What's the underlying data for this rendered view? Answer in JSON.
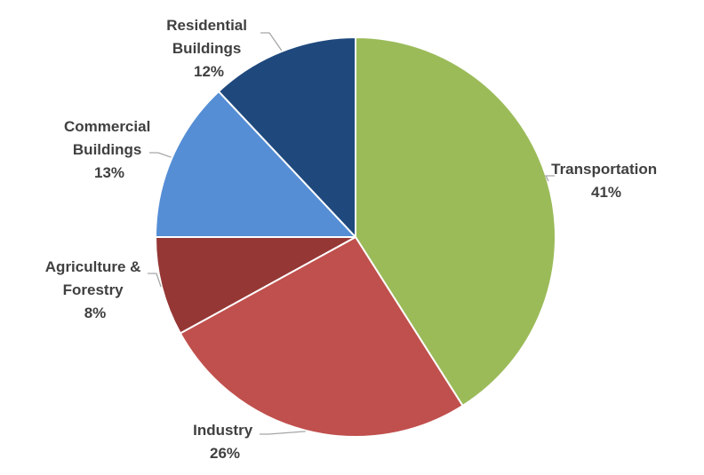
{
  "chart_data": {
    "type": "pie",
    "categories": [
      "Transportation",
      "Industry",
      "Agriculture & Forestry",
      "Commercial Buildings",
      "Residential Buildings"
    ],
    "values": [
      41,
      26,
      8,
      13,
      12
    ],
    "colors": [
      "#9BBB59",
      "#C0504D",
      "#953735",
      "#558ED5",
      "#1F497D"
    ],
    "labels": [
      {
        "lines": [
          "Transportation"
        ],
        "pct": "41%"
      },
      {
        "lines": [
          "Industry"
        ],
        "pct": "26%"
      },
      {
        "lines": [
          "Agriculture &",
          "Forestry"
        ],
        "pct": "8%"
      },
      {
        "lines": [
          "Commercial",
          "Buildings"
        ],
        "pct": "13%"
      },
      {
        "lines": [
          "Residential",
          "Buildings"
        ],
        "pct": "12%"
      }
    ],
    "start_angle": "12 o'clock",
    "direction": "clockwise",
    "legend": "none"
  }
}
